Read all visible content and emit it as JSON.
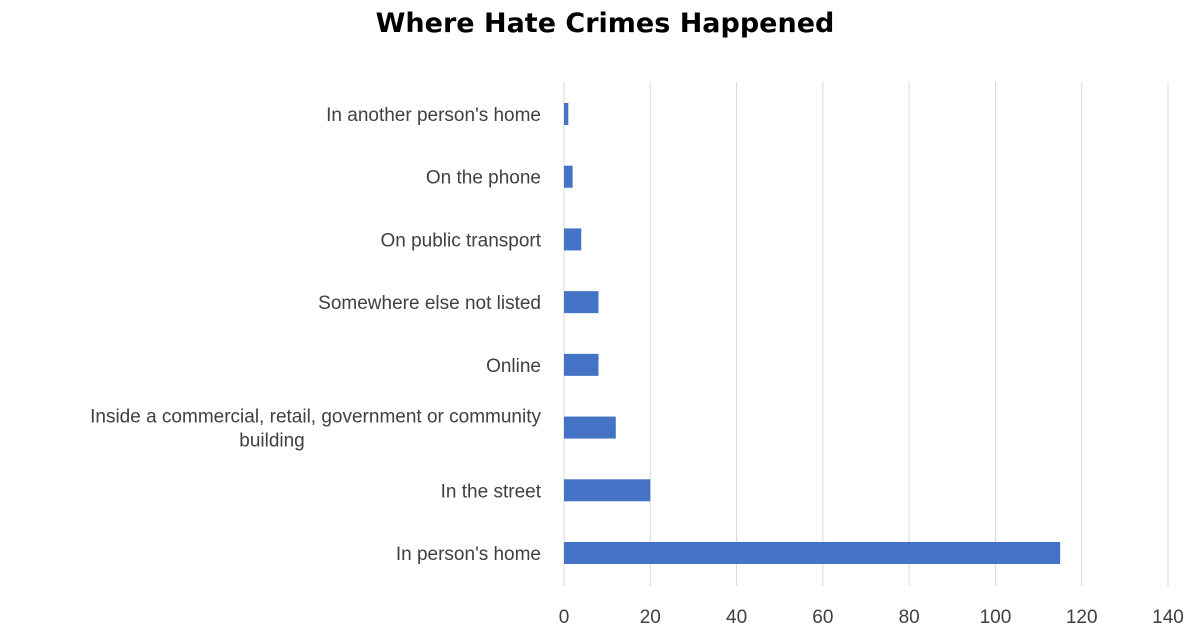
{
  "chart_data": {
    "type": "bar",
    "orientation": "horizontal",
    "title": "Where Hate Crimes Happened",
    "categories": [
      "In another person's home",
      "On the phone",
      "On public transport",
      "Somewhere else not listed",
      "Online",
      "Inside a commercial, retail, government or community building",
      "In the street",
      "In person's home"
    ],
    "category_lines": [
      [
        "In another person's home"
      ],
      [
        "On the phone"
      ],
      [
        "On public transport"
      ],
      [
        "Somewhere else not listed"
      ],
      [
        "Online"
      ],
      [
        "Inside a commercial, retail, government or community",
        "building"
      ],
      [
        "In the street"
      ],
      [
        "In person's home"
      ]
    ],
    "values": [
      1,
      2,
      4,
      8,
      8,
      12,
      20,
      115
    ],
    "xlim": [
      0,
      140
    ],
    "xticks": [
      0,
      20,
      40,
      60,
      80,
      100,
      120,
      140
    ],
    "grid": true,
    "bar_color": "#4472C4",
    "grid_color": "#D9D9D9",
    "legend": "none"
  }
}
